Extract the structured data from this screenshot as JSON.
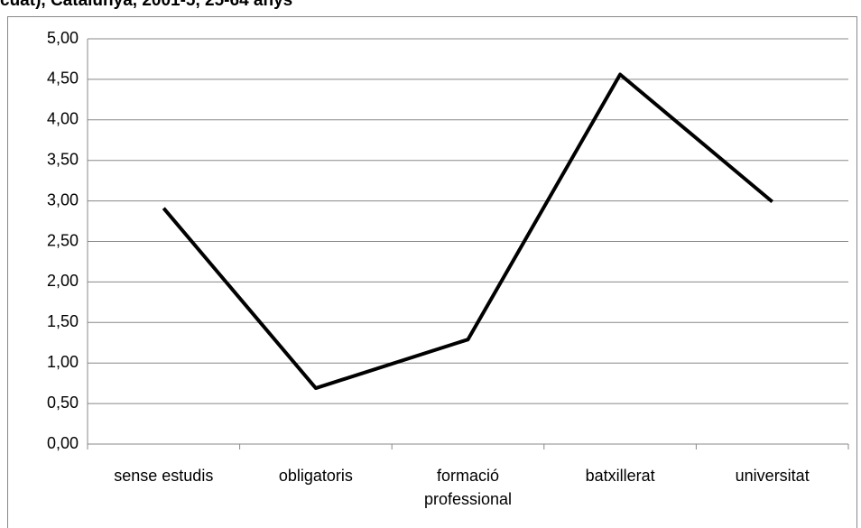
{
  "chart_data": {
    "type": "line",
    "title": "cuat), Catalunya, 2001-5, 25-64 anys",
    "categories": [
      "sense estudis",
      "obligatoris",
      "formació professional",
      "batxillerat",
      "universitat"
    ],
    "values": [
      2.91,
      0.69,
      1.29,
      4.56,
      2.99
    ],
    "color": "#000000",
    "ylim": [
      0,
      5
    ],
    "yticks": [
      {
        "value": 0,
        "label": "0,00"
      },
      {
        "value": 0.5,
        "label": "0,50"
      },
      {
        "value": 1,
        "label": "1,00"
      },
      {
        "value": 1.5,
        "label": "1,50"
      },
      {
        "value": 2,
        "label": "2,00"
      },
      {
        "value": 2.5,
        "label": "2,50"
      },
      {
        "value": 3,
        "label": "3,00"
      },
      {
        "value": 3.5,
        "label": "3,50"
      },
      {
        "value": 4,
        "label": "4,00"
      },
      {
        "value": 4.5,
        "label": "4,50"
      },
      {
        "value": 5,
        "label": "5,00"
      }
    ],
    "grid": true
  }
}
